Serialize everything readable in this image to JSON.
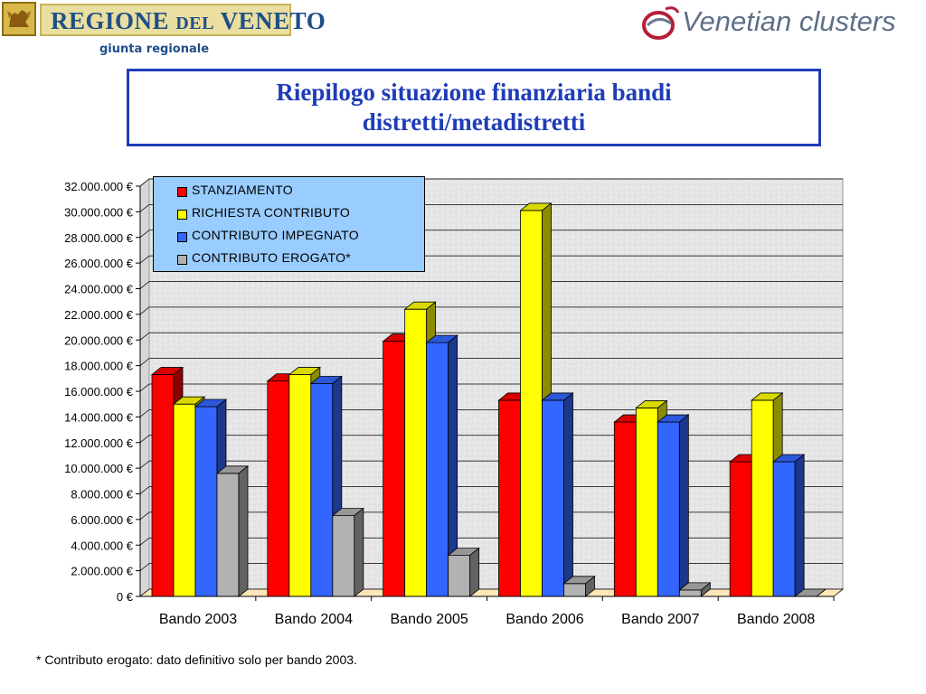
{
  "header": {
    "brand_main": "REGIONE",
    "brand_del": "DEL",
    "brand_end": "VENETO",
    "brand_sub": "giunta regionale",
    "partner": "Venetian clusters"
  },
  "slide": {
    "title": "Riepilogo situazione finanziaria bandi distretti/metadistretti",
    "footnote": "* Contributo erogato: dato definitivo solo per bando 2003."
  },
  "chart_data": {
    "type": "bar",
    "style": "3d-clustered",
    "categories": [
      "Bando 2003",
      "Bando 2004",
      "Bando 2005",
      "Bando 2006",
      "Bando 2007",
      "Bando 2008"
    ],
    "series": [
      {
        "name": "STANZIAMENTO",
        "color": "#ff0000",
        "values": [
          17300000,
          16800000,
          19900000,
          15300000,
          13600000,
          10500000
        ]
      },
      {
        "name": "RICHIESTA CONTRIBUTO",
        "color": "#ffff00",
        "values": [
          15000000,
          17300000,
          22400000,
          30100000,
          14700000,
          15300000
        ]
      },
      {
        "name": "CONTRIBUTO IMPEGNATO",
        "color": "#3366ff",
        "values": [
          14800000,
          16600000,
          19800000,
          15300000,
          13600000,
          10500000
        ]
      },
      {
        "name": "CONTRIBUTO EROGATO*",
        "color": "#b2b2b2",
        "values": [
          9600000,
          6300000,
          3200000,
          1000000,
          500000,
          0
        ]
      }
    ],
    "y_ticks": [
      "0 €",
      "2.000.000 €",
      "4.000.000 €",
      "6.000.000 €",
      "8.000.000 €",
      "10.000.000 €",
      "12.000.000 €",
      "14.000.000 €",
      "16.000.000 €",
      "18.000.000 €",
      "20.000.000 €",
      "22.000.000 €",
      "24.000.000 €",
      "26.000.000 €",
      "28.000.000 €",
      "30.000.000 €",
      "32.000.000 €"
    ],
    "ylim": [
      0,
      32000000
    ],
    "grid": true,
    "legend_position": "top-left"
  }
}
